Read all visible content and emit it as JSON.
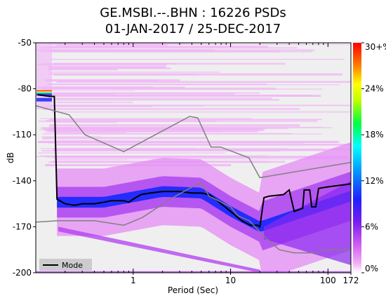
{
  "chart_data": {
    "type": "heatmap",
    "title": "GE.MSBI.--.BHN : 16226 PSDs",
    "subtitle": "01-JAN-2017 / 25-DEC-2017",
    "xlabel": "Period (Sec)",
    "ylabel": "dB",
    "x_scale": "log",
    "xlim": [
      0.1,
      172
    ],
    "ylim": [
      -200,
      -50
    ],
    "x_ticks": [
      {
        "value": 1,
        "label": "1"
      },
      {
        "value": 10,
        "label": "10"
      },
      {
        "value": 100,
        "label": "100"
      },
      {
        "value": 172,
        "label": "172"
      }
    ],
    "y_ticks": [
      -50,
      -80,
      -110,
      -140,
      -170,
      -200
    ],
    "colorbar": {
      "range": [
        0,
        30
      ],
      "tick_labels": [
        "0%",
        "6%",
        "12%",
        "18%",
        "24%",
        "30+%"
      ],
      "tick_values": [
        0,
        6,
        12,
        18,
        24,
        30
      ]
    },
    "legend": {
      "position": "bottom-left",
      "entries": [
        "Mode"
      ]
    },
    "series": [
      {
        "name": "Mode",
        "color": "#000000",
        "points": [
          [
            0.105,
            -84
          ],
          [
            0.14,
            -85
          ],
          [
            0.155,
            -85
          ],
          [
            0.165,
            -152
          ],
          [
            0.2,
            -155
          ],
          [
            0.25,
            -156
          ],
          [
            0.3,
            -155
          ],
          [
            0.4,
            -155
          ],
          [
            0.5,
            -154
          ],
          [
            0.6,
            -153
          ],
          [
            0.8,
            -153
          ],
          [
            0.9,
            -154
          ],
          [
            1.0,
            -152
          ],
          [
            1.2,
            -149
          ],
          [
            1.5,
            -148
          ],
          [
            2.0,
            -147
          ],
          [
            3.0,
            -147
          ],
          [
            4.0,
            -148
          ],
          [
            5.0,
            -148
          ],
          [
            6.0,
            -149
          ],
          [
            7.0,
            -152
          ],
          [
            8.0,
            -155
          ],
          [
            10.0,
            -160
          ],
          [
            13.0,
            -166
          ],
          [
            16.0,
            -169
          ],
          [
            19.0,
            -169
          ],
          [
            20.0,
            -170
          ],
          [
            22.0,
            -151
          ],
          [
            25.0,
            -150
          ],
          [
            35.0,
            -149
          ],
          [
            40.0,
            -146
          ],
          [
            45.0,
            -160
          ],
          [
            55.0,
            -158
          ],
          [
            57.0,
            -146
          ],
          [
            65.0,
            -146
          ],
          [
            68.0,
            -157
          ],
          [
            75.0,
            -157
          ],
          [
            80.0,
            -145
          ],
          [
            100.0,
            -144
          ],
          [
            172.0,
            -142
          ]
        ]
      },
      {
        "name": "High noise model",
        "color": "#808080",
        "points": [
          [
            0.1,
            -91
          ],
          [
            0.22,
            -97
          ],
          [
            0.32,
            -110
          ],
          [
            0.8,
            -121
          ],
          [
            3.8,
            -98
          ],
          [
            4.6,
            -99
          ],
          [
            6.3,
            -118
          ],
          [
            7.9,
            -118
          ],
          [
            15.4,
            -125
          ],
          [
            20.0,
            -138
          ],
          [
            172.0,
            -128
          ]
        ]
      },
      {
        "name": "Low noise model",
        "color": "#808080",
        "points": [
          [
            0.1,
            -167
          ],
          [
            0.17,
            -166
          ],
          [
            0.4,
            -166
          ],
          [
            0.8,
            -169
          ],
          [
            1.24,
            -164
          ],
          [
            2.4,
            -152
          ],
          [
            4.3,
            -143
          ],
          [
            5.0,
            -141
          ],
          [
            6.0,
            -150
          ],
          [
            10.0,
            -157
          ],
          [
            12.0,
            -163
          ],
          [
            15.6,
            -166
          ],
          [
            21.9,
            -176
          ],
          [
            31.6,
            -185
          ],
          [
            45.0,
            -187
          ],
          [
            70.0,
            -187
          ],
          [
            101.0,
            -185
          ],
          [
            172.0,
            -185
          ]
        ]
      }
    ]
  }
}
